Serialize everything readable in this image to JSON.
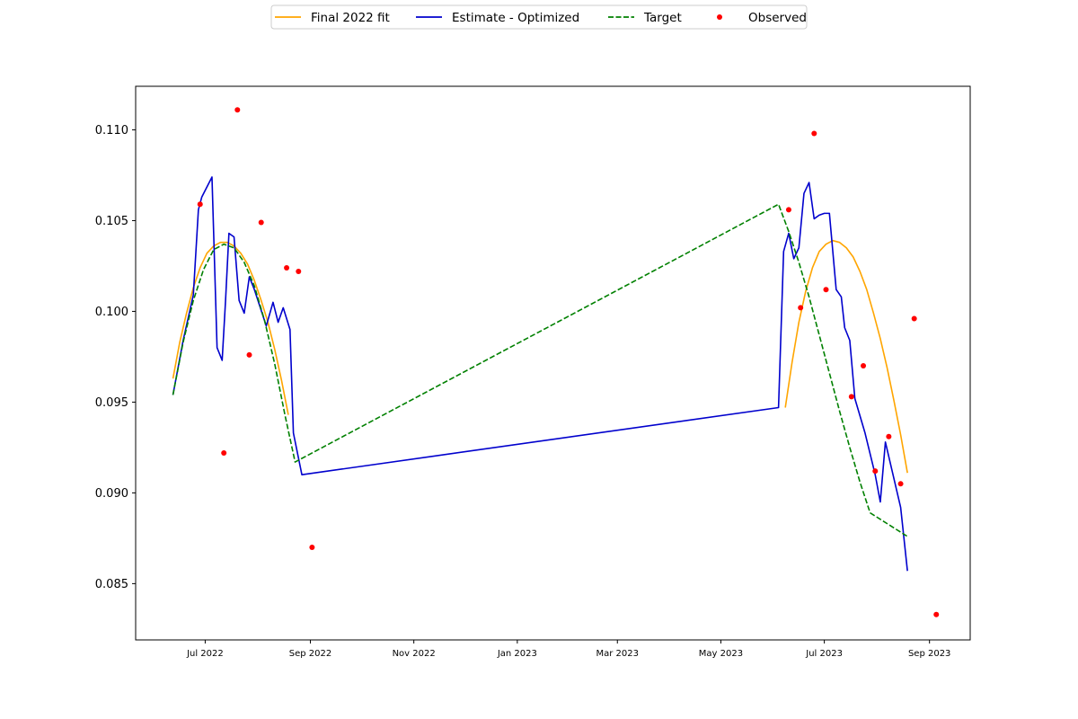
{
  "chart_data": {
    "type": "line",
    "title": "",
    "xlabel": "",
    "ylabel": "",
    "xlim": [
      "2022-05-21",
      "2023-09-25"
    ],
    "ylim": [
      0.0819,
      0.1124
    ],
    "grid": false,
    "legend_placement": "top-center",
    "x_ticks": [
      {
        "date": "2022-07-01",
        "label": "Jul 2022"
      },
      {
        "date": "2022-09-01",
        "label": "Sep 2022"
      },
      {
        "date": "2022-11-01",
        "label": "Nov 2022"
      },
      {
        "date": "2023-01-01",
        "label": "Jan 2023"
      },
      {
        "date": "2023-03-01",
        "label": "Mar 2023"
      },
      {
        "date": "2023-05-01",
        "label": "May 2023"
      },
      {
        "date": "2023-07-01",
        "label": "Jul 2023"
      },
      {
        "date": "2023-09-01",
        "label": "Sep 2023"
      }
    ],
    "y_ticks": [
      {
        "value": 0.085,
        "label": "0.085"
      },
      {
        "value": 0.09,
        "label": "0.090"
      },
      {
        "value": 0.095,
        "label": "0.095"
      },
      {
        "value": 0.1,
        "label": "0.100"
      },
      {
        "value": 0.105,
        "label": "0.105"
      },
      {
        "value": 0.11,
        "label": "0.110"
      }
    ],
    "series": [
      {
        "name": "Final 2022 fit",
        "kind": "line",
        "color": "#ffa500",
        "dash": "solid",
        "points": [
          [
            "2022-06-12",
            0.0963
          ],
          [
            "2022-06-16",
            0.0983
          ],
          [
            "2022-06-20",
            0.0999
          ],
          [
            "2022-06-24",
            0.1013
          ],
          [
            "2022-06-28",
            0.1024
          ],
          [
            "2022-07-02",
            0.1032
          ],
          [
            "2022-07-06",
            0.1036
          ],
          [
            "2022-07-10",
            0.1038
          ],
          [
            "2022-07-14",
            0.1038
          ],
          [
            "2022-07-18",
            0.1036
          ],
          [
            "2022-07-22",
            0.1032
          ],
          [
            "2022-07-26",
            0.1026
          ],
          [
            "2022-07-30",
            0.1017
          ],
          [
            "2022-08-03",
            0.1006
          ],
          [
            "2022-08-07",
            0.0994
          ],
          [
            "2022-08-11",
            0.0979
          ],
          [
            "2022-08-15",
            0.0962
          ],
          [
            "2022-08-19",
            0.0943
          ]
        ]
      },
      {
        "name": "Final 2022 fit",
        "kind": "line-continued",
        "color": "#ffa500",
        "dash": "solid",
        "points": [
          [
            "2023-06-08",
            0.0947
          ],
          [
            "2023-06-12",
            0.0972
          ],
          [
            "2023-06-16",
            0.0994
          ],
          [
            "2023-06-20",
            0.1011
          ],
          [
            "2023-06-24",
            0.1024
          ],
          [
            "2023-06-28",
            0.1033
          ],
          [
            "2023-07-02",
            0.1037
          ],
          [
            "2023-07-06",
            0.1039
          ],
          [
            "2023-07-10",
            0.1038
          ],
          [
            "2023-07-14",
            0.1035
          ],
          [
            "2023-07-18",
            0.103
          ],
          [
            "2023-07-22",
            0.1022
          ],
          [
            "2023-07-26",
            0.1012
          ],
          [
            "2023-07-30",
            0.0999
          ],
          [
            "2023-08-03",
            0.0985
          ],
          [
            "2023-08-07",
            0.0969
          ],
          [
            "2023-08-11",
            0.0951
          ],
          [
            "2023-08-15",
            0.0932
          ],
          [
            "2023-08-19",
            0.0911
          ]
        ]
      },
      {
        "name": "Estimate - Optimized",
        "kind": "line",
        "color": "#0000cd",
        "dash": "solid",
        "points": [
          [
            "2022-06-12",
            0.0954
          ],
          [
            "2022-06-18",
            0.0984
          ],
          [
            "2022-06-24",
            0.1009
          ],
          [
            "2022-06-27",
            0.1056
          ],
          [
            "2022-06-29",
            0.1063
          ],
          [
            "2022-07-05",
            0.1074
          ],
          [
            "2022-07-08",
            0.098
          ],
          [
            "2022-07-11",
            0.0973
          ],
          [
            "2022-07-13",
            0.1006
          ],
          [
            "2022-07-15",
            0.1043
          ],
          [
            "2022-07-18",
            0.1041
          ],
          [
            "2022-07-21",
            0.1006
          ],
          [
            "2022-07-24",
            0.0999
          ],
          [
            "2022-07-27",
            0.1019
          ],
          [
            "2022-07-30",
            0.1012
          ],
          [
            "2022-08-06",
            0.0992
          ],
          [
            "2022-08-10",
            0.1005
          ],
          [
            "2022-08-13",
            0.0994
          ],
          [
            "2022-08-16",
            0.1002
          ],
          [
            "2022-08-20",
            0.099
          ],
          [
            "2022-08-22",
            0.0933
          ],
          [
            "2022-08-27",
            0.091
          ],
          [
            "2023-06-04",
            0.0947
          ],
          [
            "2023-06-07",
            0.1033
          ],
          [
            "2023-06-10",
            0.1043
          ],
          [
            "2023-06-13",
            0.1029
          ],
          [
            "2023-06-16",
            0.1035
          ],
          [
            "2023-06-19",
            0.1065
          ],
          [
            "2023-06-22",
            0.1071
          ],
          [
            "2023-06-25",
            0.1051
          ],
          [
            "2023-06-28",
            0.1053
          ],
          [
            "2023-07-01",
            0.1054
          ],
          [
            "2023-07-04",
            0.1054
          ],
          [
            "2023-07-08",
            0.1012
          ],
          [
            "2023-07-11",
            0.1008
          ],
          [
            "2023-07-13",
            0.0991
          ],
          [
            "2023-07-16",
            0.0984
          ],
          [
            "2023-07-19",
            0.0952
          ],
          [
            "2023-07-25",
            0.0933
          ],
          [
            "2023-07-31",
            0.091
          ],
          [
            "2023-08-03",
            0.0895
          ],
          [
            "2023-08-06",
            0.0928
          ],
          [
            "2023-08-15",
            0.0892
          ],
          [
            "2023-08-19",
            0.0857
          ]
        ]
      },
      {
        "name": "Target",
        "kind": "line",
        "color": "#008000",
        "dash": "dashed",
        "points": [
          [
            "2022-06-12",
            0.0954
          ],
          [
            "2022-06-18",
            0.0983
          ],
          [
            "2022-06-24",
            0.1006
          ],
          [
            "2022-06-30",
            0.1023
          ],
          [
            "2022-07-06",
            0.1034
          ],
          [
            "2022-07-12",
            0.1037
          ],
          [
            "2022-07-18",
            0.1035
          ],
          [
            "2022-07-24",
            0.1027
          ],
          [
            "2022-07-30",
            0.1014
          ],
          [
            "2022-08-05",
            0.0995
          ],
          [
            "2022-08-11",
            0.0971
          ],
          [
            "2022-08-17",
            0.0943
          ],
          [
            "2022-08-23",
            0.0917
          ],
          [
            "2023-06-04",
            0.1059
          ],
          [
            "2023-06-10",
            0.1044
          ],
          [
            "2023-06-16",
            0.1027
          ],
          [
            "2023-06-22",
            0.1008
          ],
          [
            "2023-06-28",
            0.0987
          ],
          [
            "2023-07-04",
            0.0966
          ],
          [
            "2023-07-10",
            0.0945
          ],
          [
            "2023-07-16",
            0.0925
          ],
          [
            "2023-07-22",
            0.0906
          ],
          [
            "2023-07-28",
            0.0889
          ],
          [
            "2023-08-19",
            0.0876
          ]
        ]
      },
      {
        "name": "Observed",
        "kind": "scatter",
        "color": "#ff0000",
        "points": [
          [
            "2022-06-28",
            0.1059
          ],
          [
            "2022-07-12",
            0.0922
          ],
          [
            "2022-07-20",
            0.1111
          ],
          [
            "2022-07-27",
            0.0976
          ],
          [
            "2022-08-03",
            0.1049
          ],
          [
            "2022-08-18",
            0.1024
          ],
          [
            "2022-08-25",
            0.1022
          ],
          [
            "2022-09-02",
            0.087
          ],
          [
            "2023-06-10",
            0.1056
          ],
          [
            "2023-06-17",
            0.1002
          ],
          [
            "2023-06-25",
            0.1098
          ],
          [
            "2023-07-02",
            0.1012
          ],
          [
            "2023-07-17",
            0.0953
          ],
          [
            "2023-07-24",
            0.097
          ],
          [
            "2023-07-31",
            0.0912
          ],
          [
            "2023-08-08",
            0.0931
          ],
          [
            "2023-08-15",
            0.0905
          ],
          [
            "2023-08-23",
            0.0996
          ],
          [
            "2023-09-05",
            0.0833
          ]
        ]
      }
    ],
    "legend": [
      {
        "label": "Final 2022 fit",
        "color": "#ffa500",
        "marker": "line"
      },
      {
        "label": "Estimate - Optimized",
        "color": "#0000cd",
        "marker": "line"
      },
      {
        "label": "Target",
        "color": "#008000",
        "marker": "dashed"
      },
      {
        "label": "Observed",
        "color": "#ff0000",
        "marker": "dot"
      }
    ]
  }
}
